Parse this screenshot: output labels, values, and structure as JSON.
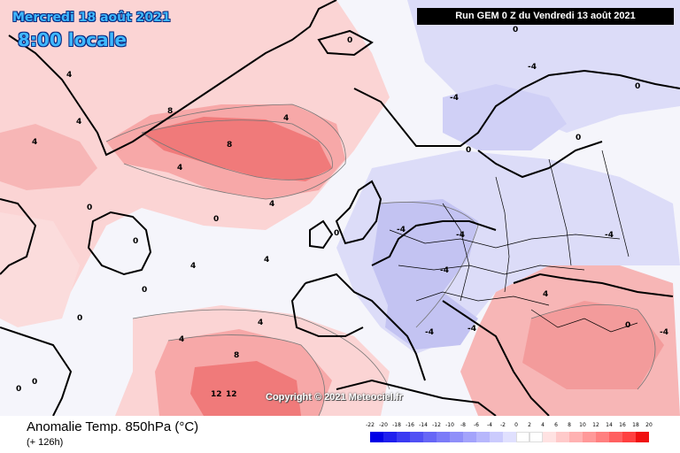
{
  "header": {
    "date": "Mercredi 18 août 2021",
    "time": "8:00 locale",
    "run": "Run GEM 0 Z du Vendredi 13 août 2021"
  },
  "watermark": "Copyright © 2021 Meteociel.fr",
  "footer": {
    "title": "Anomalie Temp. 850hPa (°C)",
    "subtitle": "(+ 126h)"
  },
  "legend": {
    "labels": [
      "-22",
      "-20",
      "-18",
      "-16",
      "-14",
      "-12",
      "-10",
      "-8",
      "-6",
      "-4",
      "-2",
      "0",
      "2",
      "4",
      "6",
      "8",
      "10",
      "12",
      "14",
      "16",
      "18",
      "20"
    ],
    "colors": [
      "#0000e6",
      "#1f1fee",
      "#3a3af2",
      "#5050f4",
      "#6666f6",
      "#7b7bf8",
      "#8f8ff9",
      "#a3a3fb",
      "#b7b7fc",
      "#cbcbfd",
      "#e0e0fe",
      "#ffffff",
      "#ffffff",
      "#ffe2e2",
      "#ffcaca",
      "#ffb2b2",
      "#ff9999",
      "#ff8080",
      "#ff6060",
      "#ff4040",
      "#f01010",
      "#d00000"
    ]
  },
  "contour_labels": [
    "0",
    "4",
    "8",
    "12",
    "-4"
  ],
  "colors": {
    "land_outline": "#000000",
    "contour_line": "#555555",
    "warm_light": "#fbd4d4",
    "warm_mid": "#f7a8a8",
    "warm_strong": "#f07a7a",
    "cool_light": "#dcdcf8",
    "cool_mid": "#c3c3f2"
  }
}
